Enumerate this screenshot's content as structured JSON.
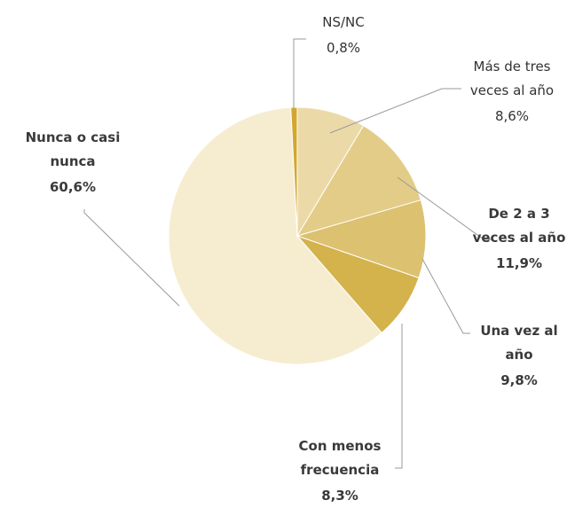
{
  "chart_data": {
    "type": "pie",
    "categories": [
      "NS/NC",
      "Más de tres veces al año",
      "De 2 a 3 veces al año",
      "Una vez al año",
      "Con menos frecuencia",
      "Nunca o casi nunca"
    ],
    "values": [
      0.8,
      8.6,
      11.9,
      9.8,
      8.3,
      60.6
    ],
    "value_labels": [
      "0,8%",
      "8,6%",
      "11,9%",
      "9,8%",
      "8,3%",
      "60,6%"
    ],
    "colors": [
      "#d2a72e",
      "#ebdaa8",
      "#e3cc87",
      "#dcc171",
      "#d4b24c",
      "#f6edd1"
    ]
  }
}
